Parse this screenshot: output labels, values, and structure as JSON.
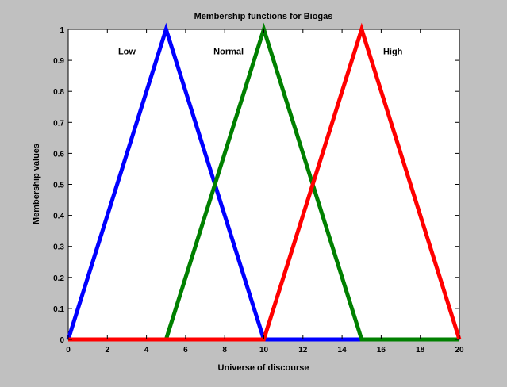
{
  "chart_data": {
    "type": "line",
    "title": "Membership functions for Biogas",
    "xlabel": "Universe of discourse",
    "ylabel": "Membership values",
    "xlim": [
      0,
      20
    ],
    "ylim": [
      0,
      1
    ],
    "x_ticks": [
      0,
      2,
      4,
      6,
      8,
      10,
      12,
      14,
      16,
      18,
      20
    ],
    "x_tick_labels": [
      "0",
      "2",
      "4",
      "6",
      "8",
      "10",
      "12",
      "14",
      "16",
      "18",
      "20"
    ],
    "y_ticks": [
      0,
      0.1,
      0.2,
      0.3,
      0.4,
      0.5,
      0.6,
      0.7,
      0.8,
      0.9,
      1
    ],
    "y_tick_labels": [
      "0",
      "0.1",
      "0.2",
      "0.3",
      "0.4",
      "0.5",
      "0.6",
      "0.7",
      "0.8",
      "0.9",
      "1"
    ],
    "grid": false,
    "series": [
      {
        "name": "Low",
        "color": "#0000ff",
        "x": [
          0,
          5,
          10,
          20
        ],
        "y": [
          0,
          1,
          0,
          0
        ],
        "label_x": 3.0,
        "label_y": 0.92
      },
      {
        "name": "Normal",
        "color": "#008000",
        "x": [
          0,
          5,
          10,
          15,
          20
        ],
        "y": [
          0,
          0,
          1,
          0,
          0
        ],
        "label_x": 8.2,
        "label_y": 0.92
      },
      {
        "name": "High",
        "color": "#ff0000",
        "x": [
          0,
          10,
          15,
          20
        ],
        "y": [
          0,
          0,
          1,
          0
        ],
        "label_x": 16.6,
        "label_y": 0.92
      }
    ]
  }
}
